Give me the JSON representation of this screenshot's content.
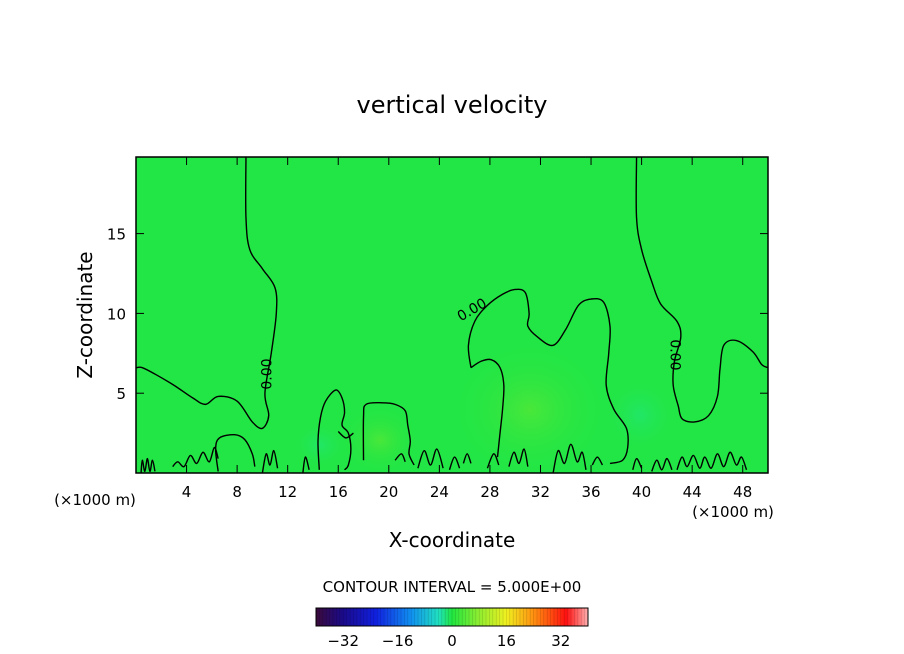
{
  "chart_data": {
    "type": "heatmap",
    "title": "vertical velocity",
    "xlabel": "X-coordinate",
    "ylabel": "Z-coordinate",
    "x_unit": "(×1000 m)",
    "xlim": [
      0,
      50
    ],
    "ylim": [
      0,
      19.8
    ],
    "x_ticks": [
      4,
      8,
      12,
      16,
      20,
      24,
      28,
      32,
      36,
      40,
      44,
      48
    ],
    "y_ticks": [
      5,
      10,
      15
    ],
    "contour_interval_text": "CONTOUR INTERVAL = 5.000E+00",
    "contour_label": "0.00",
    "colorbar": {
      "min": -40,
      "max": 40,
      "ticks": [
        -32,
        -16,
        0,
        16,
        32
      ],
      "tick_labels": [
        "−32",
        "−16",
        "0",
        "16",
        "32"
      ]
    },
    "field_background_color": "#22e645",
    "contours": [
      {
        "level": 0,
        "points": [
          [
            8.7,
            19.8
          ],
          [
            8.7,
            16
          ],
          [
            9.0,
            14
          ],
          [
            10.0,
            12.8
          ],
          [
            11.0,
            11.6
          ],
          [
            11.1,
            10
          ],
          [
            10.7,
            7.5
          ],
          [
            10.2,
            5
          ],
          [
            10.5,
            3.6
          ],
          [
            10.0,
            2.8
          ],
          [
            9.2,
            3.2
          ],
          [
            8.0,
            4.5
          ],
          [
            6.5,
            4.8
          ],
          [
            5.5,
            4.3
          ],
          [
            4.5,
            4.7
          ],
          [
            3.0,
            5.5
          ],
          [
            1.5,
            6.2
          ],
          [
            0.5,
            6.6
          ],
          [
            0,
            6.6
          ]
        ]
      },
      {
        "level": 0,
        "points": [
          [
            39.6,
            19.8
          ],
          [
            39.6,
            16
          ],
          [
            40.0,
            14
          ],
          [
            40.8,
            12.0
          ],
          [
            41.5,
            10.6
          ],
          [
            42.8,
            9.5
          ],
          [
            43.1,
            8.5
          ],
          [
            42.6,
            7.0
          ],
          [
            42.5,
            5.5
          ],
          [
            42.9,
            4.2
          ],
          [
            43.2,
            3.4
          ],
          [
            44.2,
            3.2
          ],
          [
            45.3,
            3.6
          ],
          [
            46.0,
            4.8
          ],
          [
            46.2,
            6.5
          ],
          [
            46.5,
            8.0
          ],
          [
            47.5,
            8.3
          ],
          [
            48.8,
            7.6
          ],
          [
            49.5,
            6.8
          ],
          [
            50,
            6.6
          ]
        ]
      },
      {
        "level": 0,
        "points": [
          [
            26.5,
            6.6
          ],
          [
            26.3,
            8.0
          ],
          [
            26.8,
            9.5
          ],
          [
            27.8,
            10.5
          ],
          [
            29.0,
            11.2
          ],
          [
            30.0,
            11.5
          ],
          [
            30.8,
            11.3
          ],
          [
            31.1,
            10.0
          ],
          [
            31.0,
            9.2
          ],
          [
            31.8,
            8.5
          ],
          [
            33.0,
            8.0
          ],
          [
            34.0,
            9.0
          ],
          [
            35.0,
            10.5
          ],
          [
            36.0,
            10.9
          ],
          [
            37.0,
            10.7
          ],
          [
            37.5,
            9.2
          ],
          [
            37.4,
            7.5
          ],
          [
            37.2,
            5.5
          ],
          [
            37.8,
            4.0
          ],
          [
            38.8,
            2.8
          ],
          [
            38.9,
            1.6
          ],
          [
            38.5,
            0.8
          ],
          [
            37.5,
            0.6
          ]
        ]
      },
      {
        "level": 0,
        "points": [
          [
            26.5,
            6.6
          ],
          [
            27.3,
            7.0
          ],
          [
            28.1,
            7.1
          ],
          [
            28.8,
            6.6
          ],
          [
            29.1,
            5.5
          ],
          [
            29.0,
            4.0
          ],
          [
            28.8,
            2.5
          ],
          [
            28.6,
            1.0
          ]
        ]
      },
      {
        "level": 0,
        "points": [
          [
            18.0,
            0.8
          ],
          [
            18.0,
            3.5
          ],
          [
            18.2,
            4.3
          ],
          [
            19.5,
            4.4
          ],
          [
            20.5,
            4.3
          ],
          [
            21.3,
            3.9
          ],
          [
            21.5,
            3.0
          ],
          [
            21.7,
            2.0
          ],
          [
            21.6,
            1.2
          ],
          [
            22.0,
            0.5
          ]
        ]
      },
      {
        "level": 0,
        "points": [
          [
            14.5,
            0.2
          ],
          [
            14.4,
            2.0
          ],
          [
            14.6,
            3.5
          ],
          [
            15.0,
            4.5
          ],
          [
            15.8,
            5.2
          ],
          [
            16.3,
            4.7
          ],
          [
            16.5,
            3.8
          ],
          [
            16.3,
            3.0
          ],
          [
            16.8,
            2.5
          ],
          [
            17.0,
            1.5
          ],
          [
            16.8,
            0.5
          ],
          [
            16.5,
            0.2
          ]
        ]
      },
      {
        "level": 0,
        "points": [
          [
            6.5,
            0.1
          ],
          [
            6.3,
            1.5
          ],
          [
            6.6,
            2.2
          ],
          [
            7.8,
            2.4
          ],
          [
            8.6,
            2.1
          ],
          [
            9.2,
            1.2
          ],
          [
            9.4,
            0.4
          ]
        ]
      },
      {
        "level": 0,
        "points": [
          [
            2.9,
            0.4
          ],
          [
            3.3,
            0.7
          ],
          [
            3.8,
            0.4
          ],
          [
            4.3,
            1.1
          ],
          [
            4.8,
            0.6
          ],
          [
            5.3,
            1.3
          ],
          [
            5.8,
            0.7
          ],
          [
            6.2,
            1.6
          ],
          [
            6.5,
            0.9
          ]
        ]
      },
      {
        "level": 0,
        "points": [
          [
            10.0,
            0
          ],
          [
            10.3,
            1.2
          ],
          [
            10.6,
            0.5
          ],
          [
            10.9,
            1.4
          ],
          [
            11.2,
            0.3
          ]
        ]
      },
      {
        "level": 0,
        "points": [
          [
            13.2,
            0
          ],
          [
            13.4,
            1.0
          ],
          [
            13.7,
            0.2
          ]
        ]
      },
      {
        "level": 0,
        "points": [
          [
            22.3,
            0.3
          ],
          [
            22.8,
            1.4
          ],
          [
            23.3,
            0.5
          ],
          [
            23.8,
            1.5
          ],
          [
            24.3,
            0.3
          ]
        ]
      },
      {
        "level": 0,
        "points": [
          [
            24.8,
            0.2
          ],
          [
            25.2,
            1.0
          ],
          [
            25.6,
            0.3
          ]
        ]
      },
      {
        "level": 0,
        "points": [
          [
            27.8,
            0.3
          ],
          [
            28.3,
            1.2
          ],
          [
            28.7,
            0.5
          ]
        ]
      },
      {
        "level": 0,
        "points": [
          [
            29.5,
            0.4
          ],
          [
            29.9,
            1.3
          ],
          [
            30.3,
            0.6
          ],
          [
            30.7,
            1.5
          ],
          [
            31.0,
            0.4
          ]
        ]
      },
      {
        "level": 0,
        "points": [
          [
            33.0,
            0
          ],
          [
            33.4,
            1.4
          ],
          [
            33.9,
            0.6
          ],
          [
            34.4,
            1.8
          ],
          [
            34.9,
            0.7
          ],
          [
            35.3,
            1.3
          ],
          [
            35.6,
            0.2
          ]
        ]
      },
      {
        "level": 0,
        "points": [
          [
            39.3,
            0.2
          ],
          [
            39.6,
            0.9
          ],
          [
            40.0,
            0.3
          ]
        ]
      },
      {
        "level": 0,
        "points": [
          [
            40.8,
            0.1
          ],
          [
            41.2,
            0.8
          ],
          [
            41.6,
            0.2
          ],
          [
            42.0,
            0.9
          ],
          [
            42.4,
            0.2
          ]
        ]
      },
      {
        "level": 0,
        "points": [
          [
            42.8,
            0.2
          ],
          [
            43.2,
            1.0
          ],
          [
            43.6,
            0.4
          ],
          [
            44.1,
            1.1
          ],
          [
            44.6,
            0.3
          ],
          [
            45.0,
            1.0
          ],
          [
            45.5,
            0.3
          ],
          [
            46.0,
            1.2
          ],
          [
            46.5,
            0.4
          ],
          [
            47.0,
            1.3
          ],
          [
            47.5,
            0.5
          ],
          [
            47.9,
            1.0
          ],
          [
            48.3,
            0.2
          ]
        ]
      },
      {
        "level": 0,
        "points": [
          [
            0.4,
            0
          ],
          [
            0.5,
            0.8
          ],
          [
            0.7,
            0.1
          ],
          [
            0.9,
            0.9
          ],
          [
            1.1,
            0.1
          ],
          [
            1.3,
            0.8
          ],
          [
            1.5,
            0.1
          ]
        ]
      },
      {
        "level": 0,
        "points": [
          [
            16.0,
            2.6
          ],
          [
            16.6,
            2.2
          ],
          [
            17.2,
            2.5
          ]
        ]
      },
      {
        "level": 0,
        "points": [
          [
            20.5,
            0.8
          ],
          [
            21.0,
            1.2
          ],
          [
            21.3,
            0.7
          ]
        ]
      },
      {
        "level": 0,
        "points": [
          [
            25.9,
            0.6
          ],
          [
            26.2,
            1.2
          ],
          [
            26.5,
            0.6
          ]
        ]
      },
      {
        "level": 0,
        "points": [
          [
            36.1,
            0.5
          ],
          [
            36.5,
            1.0
          ],
          [
            36.9,
            0.5
          ]
        ]
      }
    ],
    "contour_labels": [
      {
        "x": 10.4,
        "y": 6.2,
        "angle": -90
      },
      {
        "x": 26.6,
        "y": 10.2,
        "angle": -30
      },
      {
        "x": 42.6,
        "y": 7.4,
        "angle": 90
      }
    ]
  }
}
